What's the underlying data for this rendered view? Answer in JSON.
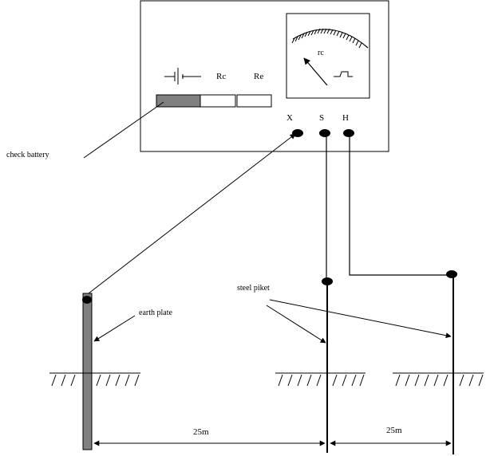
{
  "instrument": {
    "meter_label": "rc",
    "button_labels": [
      "Rc",
      "Re"
    ],
    "terminals": [
      "X",
      "S",
      "H"
    ]
  },
  "annotations": {
    "check_battery": "check battery",
    "earth_plate": "earth plate",
    "steel_piket": "steel piket"
  },
  "dimensions": {
    "left_distance": "25m",
    "right_distance": "25m"
  },
  "colors": {
    "line": "#000000",
    "battery_fill": "#808080",
    "plate_fill": "#808080",
    "background": "#ffffff"
  }
}
